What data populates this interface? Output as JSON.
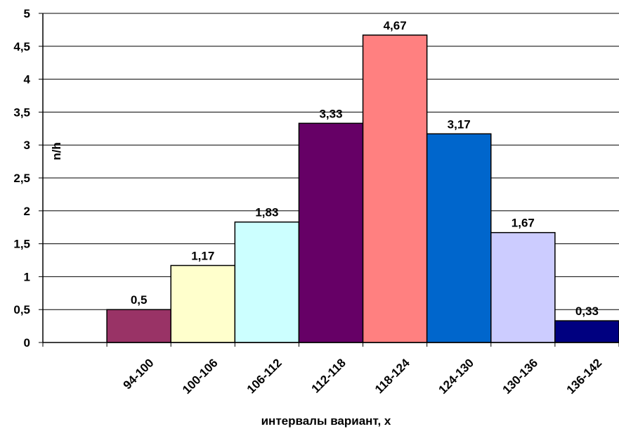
{
  "chart_data": {
    "type": "bar",
    "categories": [
      "",
      "94-100",
      "100-106",
      "106-112",
      "112-118",
      "118-124",
      "124-130",
      "130-136",
      "136-142"
    ],
    "values": [
      null,
      0.5,
      1.17,
      1.83,
      3.33,
      4.67,
      3.17,
      1.67,
      0.33
    ],
    "data_labels": [
      "",
      "0,5",
      "1,17",
      "1,83",
      "3,33",
      "4,67",
      "3,17",
      "1,67",
      "0,33"
    ],
    "colors": [
      "",
      "#993366",
      "#FFFFCC",
      "#CCFFFF",
      "#660066",
      "#FF8080",
      "#0066CC",
      "#CCCCFF",
      "#000080"
    ],
    "ylim": [
      0,
      5
    ],
    "yticks": [
      0,
      0.5,
      1,
      1.5,
      2,
      2.5,
      3,
      3.5,
      4,
      4.5,
      5
    ],
    "ytick_labels": [
      "0",
      "0,5",
      "1",
      "1,5",
      "2",
      "2,5",
      "3",
      "3,5",
      "4",
      "4,5",
      "5"
    ],
    "xlabel": "интервалы вариант, х",
    "ylabel": "n/h",
    "grid": true,
    "legend": "none"
  }
}
